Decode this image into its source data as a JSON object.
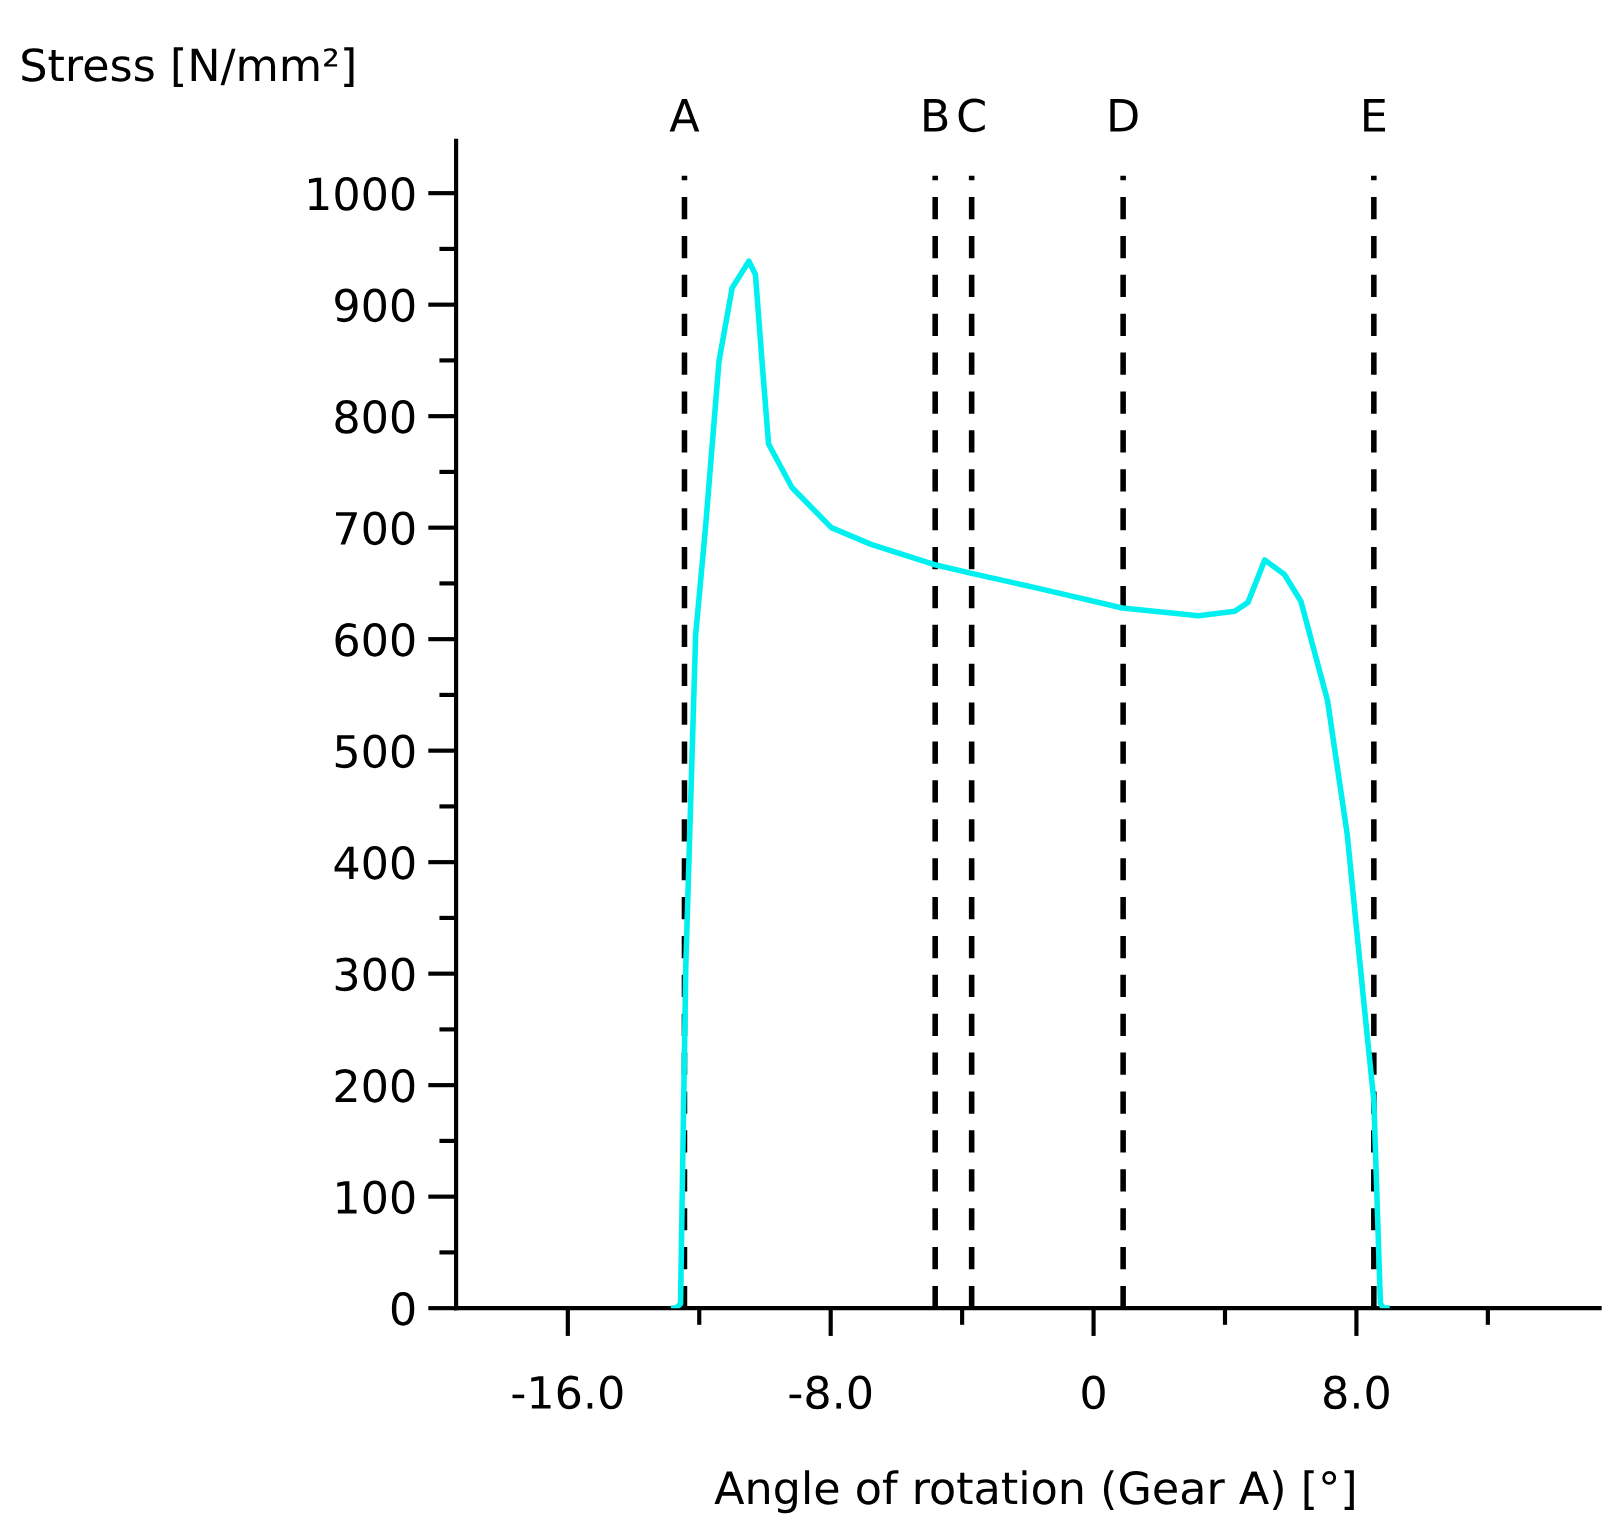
{
  "chart_data": {
    "type": "line",
    "ylabel": "Stress [N/mm²]",
    "xlabel": "Angle of rotation (Gear A) [°]",
    "x": [
      -12.78,
      -12.71,
      -12.57,
      -12.41,
      -12.11,
      -11.81,
      -11.4,
      -11.0,
      -10.49,
      -10.29,
      -10.09,
      -9.89,
      -9.18,
      -7.98,
      -6.77,
      -4.86,
      -3.71,
      -1.74,
      0.88,
      3.19,
      4.3,
      4.7,
      5.21,
      5.81,
      6.31,
      7.12,
      7.72,
      8.22,
      8.53,
      8.73,
      8.83,
      8.93
    ],
    "series": [
      {
        "color": "#00f0f0",
        "values": [
          0,
          0,
          4,
          306,
          604,
          700,
          849,
          915,
          939,
          927,
          849,
          775,
          736,
          700,
          685,
          667,
          659,
          646,
          628,
          621,
          625,
          633,
          671,
          658,
          634,
          545,
          425,
          276,
          186,
          4,
          0,
          0
        ]
      }
    ],
    "xlim": [
      -19.4,
      15.4
    ],
    "ylim": [
      0,
      1047
    ],
    "xticks": [
      {
        "value": -16,
        "label": "-16.0"
      },
      {
        "value": -12,
        "label": null
      },
      {
        "value": -8,
        "label": "-8.0"
      },
      {
        "value": -4,
        "label": null
      },
      0,
      {
        "value": 4,
        "label": null
      },
      {
        "value": 8,
        "label": "8.0"
      },
      {
        "value": 12,
        "label": null
      }
    ],
    "yticks": [
      0,
      {
        "value": 50,
        "label": null
      },
      100,
      {
        "value": 150,
        "label": null
      },
      200,
      {
        "value": 250,
        "label": null
      },
      300,
      {
        "value": 350,
        "label": null
      },
      400,
      {
        "value": 450,
        "label": null
      },
      500,
      {
        "value": 550,
        "label": null
      },
      600,
      {
        "value": 650,
        "label": null
      },
      700,
      {
        "value": 750,
        "label": null
      },
      800,
      {
        "value": 850,
        "label": null
      },
      900,
      {
        "value": 950,
        "label": null
      },
      1000
    ],
    "ref_lines": [
      {
        "axis": "x",
        "value": -12.45,
        "label": "A",
        "color": "#000000",
        "line_style": "dashed"
      },
      {
        "axis": "x",
        "value": -4.82,
        "label": "B",
        "color": "#000000",
        "line_style": "dashed"
      },
      {
        "axis": "x",
        "value": -3.71,
        "label": "C",
        "color": "#000000",
        "line_style": "dashed"
      },
      {
        "axis": "x",
        "value": 0.9,
        "label": "D",
        "color": "#000000",
        "line_style": "dashed"
      },
      {
        "axis": "x",
        "value": 8.53,
        "label": "E",
        "color": "#000000",
        "line_style": "dashed"
      }
    ],
    "grid": false,
    "legend": false,
    "marker": "none",
    "line_style": "solid"
  }
}
